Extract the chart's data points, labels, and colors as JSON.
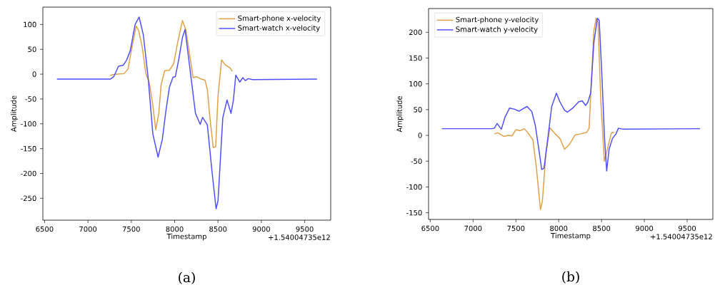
{
  "chart_data": [
    {
      "type": "line",
      "xlabel": "Timestamp",
      "ylabel": "Amplitude",
      "xlim": [
        6480,
        9800
      ],
      "ylim": [
        -294,
        135
      ],
      "xticks": [
        6500,
        7000,
        7500,
        8000,
        8500,
        9000,
        9500
      ],
      "yticks": [
        -250,
        -200,
        -150,
        -100,
        -50,
        0,
        50,
        100
      ],
      "legend": "top right",
      "annotations": [
        "+1.54004735e12",
        "(a)"
      ],
      "series": [
        {
          "name": "Smart-phone x-velocity",
          "color": "#e0a045",
          "x": [
            7257,
            7284,
            7339,
            7416,
            7462,
            7503,
            7557,
            7584,
            7626,
            7667,
            7708,
            7749,
            7782,
            7817,
            7844,
            7885,
            7940,
            7989,
            8035,
            8090,
            8131,
            8172,
            8213,
            8254,
            8309,
            8350,
            8377,
            8404,
            8445,
            8473,
            8500,
            8541,
            8582,
            8637,
            8664
          ],
          "values": [
            -3,
            -1,
            0,
            1,
            10,
            50,
            97,
            88,
            55,
            2,
            -17,
            -64,
            -112,
            -79,
            -21,
            7,
            8,
            21,
            64,
            108,
            88,
            40,
            -7,
            -5,
            -10,
            -12,
            -31,
            -83,
            -148,
            -146,
            -45,
            29,
            19,
            13,
            6
          ]
        },
        {
          "name": "Smart-watch x-velocity",
          "color": "#4d4dff",
          "x": [
            6642,
            7257,
            7298,
            7352,
            7407,
            7448,
            7489,
            7544,
            7590,
            7639,
            7694,
            7749,
            7809,
            7858,
            7899,
            7940,
            7981,
            8008,
            8049,
            8090,
            8120,
            8172,
            8240,
            8295,
            8322,
            8377,
            8432,
            8478,
            8500,
            8555,
            8604,
            8650,
            8678,
            8705,
            8751,
            8787,
            8815,
            8850,
            8900,
            9642
          ],
          "values": [
            -10,
            -10,
            -5,
            16,
            18,
            29,
            48,
            100,
            115,
            79,
            -7,
            -121,
            -167,
            -131,
            -74,
            -26,
            -6,
            -5,
            31,
            74,
            90,
            17,
            -79,
            -101,
            -87,
            -102,
            -198,
            -271,
            -255,
            -88,
            -52,
            -79,
            -52,
            -2,
            -16,
            -7,
            -13,
            -9,
            -11,
            -10
          ]
        }
      ]
    },
    {
      "type": "line",
      "xlabel": "Timestamp",
      "ylabel": "Amplitude",
      "xlim": [
        6480,
        9800
      ],
      "ylim": [
        -163,
        246
      ],
      "xticks": [
        6500,
        7000,
        7500,
        8000,
        8500,
        9000,
        9500
      ],
      "yticks": [
        -150,
        -100,
        -50,
        0,
        50,
        100,
        150,
        200
      ],
      "legend": "top left",
      "annotations": [
        "+1.54004735e12",
        "(b)"
      ],
      "series": [
        {
          "name": "Smart-phone y-velocity",
          "color": "#e0a045",
          "x": [
            7248,
            7289,
            7358,
            7412,
            7453,
            7500,
            7549,
            7598,
            7645,
            7699,
            7740,
            7787,
            7809,
            7850,
            7896,
            7959,
            8014,
            8068,
            8123,
            8191,
            8260,
            8328,
            8355,
            8383,
            8410,
            8437,
            8459,
            8492,
            8533,
            8574,
            8615,
            8648
          ],
          "values": [
            3,
            5,
            -2,
            0,
            -1,
            11,
            9,
            13,
            4,
            -9,
            -64,
            -144,
            -128,
            -36,
            15,
            3,
            -6,
            -27,
            -18,
            1,
            3,
            6,
            14,
            110,
            202,
            227,
            219,
            65,
            -50,
            -23,
            5,
            6
          ]
        },
        {
          "name": "Smart-watch y-velocity",
          "color": "#4d4dff",
          "x": [
            6634,
            7221,
            7248,
            7281,
            7330,
            7372,
            7426,
            7481,
            7536,
            7576,
            7631,
            7686,
            7727,
            7768,
            7801,
            7828,
            7877,
            7918,
            7973,
            8014,
            8068,
            8101,
            8164,
            8232,
            8273,
            8314,
            8342,
            8374,
            8410,
            8451,
            8473,
            8506,
            8533,
            8560,
            8588,
            8628,
            8669,
            8697,
            8751,
            9650
          ],
          "values": [
            13,
            13,
            14,
            23,
            12,
            35,
            53,
            51,
            47,
            51,
            56,
            46,
            19,
            -27,
            -66,
            -64,
            0,
            56,
            82,
            65,
            49,
            45,
            53,
            65,
            67,
            58,
            65,
            83,
            179,
            227,
            223,
            110,
            0,
            -69,
            -27,
            -6,
            3,
            14,
            12,
            13
          ]
        }
      ]
    }
  ]
}
